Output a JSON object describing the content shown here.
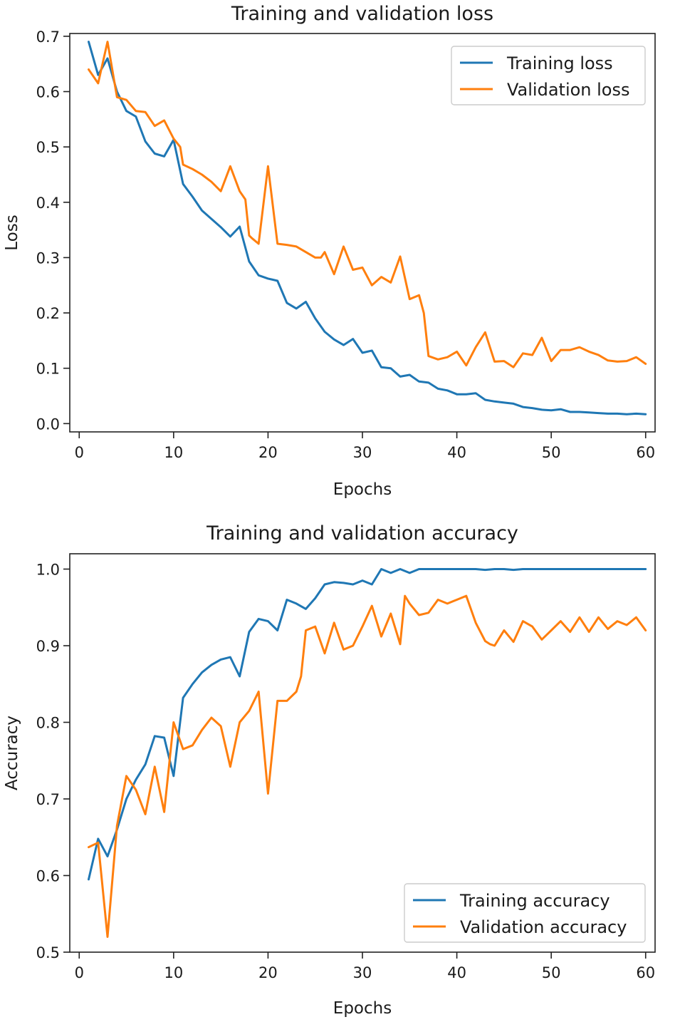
{
  "chart_data": [
    {
      "type": "line",
      "title": "Training and validation loss",
      "xlabel": "Epochs",
      "ylabel": "Loss",
      "xlim": [
        -1,
        61
      ],
      "ylim": [
        -0.015,
        0.705
      ],
      "xticks": [
        0,
        10,
        20,
        30,
        40,
        50,
        60
      ],
      "yticks": [
        0.0,
        0.1,
        0.2,
        0.3,
        0.4,
        0.5,
        0.6,
        0.7
      ],
      "ytick_labels": [
        "0.0",
        "0.1",
        "0.2",
        "0.3",
        "0.4",
        "0.5",
        "0.6",
        "0.7"
      ],
      "legend": "top-right",
      "grid": false,
      "series": [
        {
          "name": "Training loss",
          "color": "#1f77b4",
          "x": [
            1,
            2,
            3,
            4,
            5,
            6,
            7,
            8,
            9,
            10,
            11,
            12,
            13,
            14,
            15,
            16,
            17,
            18,
            19,
            20,
            21,
            22,
            23,
            24,
            25,
            26,
            27,
            28,
            29,
            30,
            31,
            32,
            33,
            34,
            35,
            36,
            37,
            38,
            39,
            40,
            41,
            42,
            43,
            44,
            45,
            46,
            47,
            48,
            49,
            50,
            51,
            52,
            53,
            54,
            55,
            56,
            57,
            58,
            59,
            60
          ],
          "y": [
            0.69,
            0.63,
            0.66,
            0.6,
            0.565,
            0.555,
            0.51,
            0.488,
            0.483,
            0.513,
            0.433,
            0.41,
            0.385,
            0.37,
            0.355,
            0.338,
            0.356,
            0.293,
            0.268,
            0.262,
            0.258,
            0.218,
            0.208,
            0.22,
            0.19,
            0.166,
            0.152,
            0.142,
            0.153,
            0.128,
            0.132,
            0.102,
            0.1,
            0.085,
            0.088,
            0.076,
            0.074,
            0.063,
            0.06,
            0.053,
            0.053,
            0.055,
            0.043,
            0.04,
            0.038,
            0.036,
            0.03,
            0.028,
            0.025,
            0.024,
            0.026,
            0.021,
            0.021,
            0.02,
            0.019,
            0.018,
            0.018,
            0.017,
            0.018,
            0.017
          ]
        },
        {
          "name": "Validation loss",
          "color": "#ff7f0e",
          "x": [
            1,
            2,
            3,
            4,
            5,
            6,
            7,
            8,
            9,
            10,
            10.7,
            11,
            12,
            13,
            14,
            15,
            16,
            17,
            17.6,
            18,
            18.3,
            19,
            20,
            21,
            22,
            23,
            24,
            25,
            25.6,
            26,
            27,
            28,
            29,
            30,
            31,
            32,
            33,
            34,
            35,
            36,
            36.5,
            37,
            38,
            39,
            40,
            41,
            42,
            43,
            44,
            45,
            46,
            47,
            48,
            49,
            50,
            51,
            52,
            53,
            54,
            55,
            56,
            57,
            58,
            59,
            60
          ],
          "y": [
            0.64,
            0.615,
            0.69,
            0.59,
            0.585,
            0.565,
            0.563,
            0.538,
            0.548,
            0.515,
            0.5,
            0.468,
            0.46,
            0.45,
            0.437,
            0.42,
            0.465,
            0.42,
            0.405,
            0.34,
            0.335,
            0.325,
            0.465,
            0.325,
            0.323,
            0.32,
            0.31,
            0.3,
            0.3,
            0.31,
            0.27,
            0.32,
            0.278,
            0.282,
            0.25,
            0.265,
            0.255,
            0.302,
            0.225,
            0.232,
            0.2,
            0.122,
            0.116,
            0.12,
            0.13,
            0.105,
            0.138,
            0.165,
            0.112,
            0.113,
            0.102,
            0.127,
            0.124,
            0.155,
            0.113,
            0.133,
            0.133,
            0.138,
            0.13,
            0.124,
            0.114,
            0.112,
            0.113,
            0.12,
            0.108
          ]
        }
      ]
    },
    {
      "type": "line",
      "title": "Training and validation accuracy",
      "xlabel": "Epochs",
      "ylabel": "Accuracy",
      "xlim": [
        -1,
        61
      ],
      "ylim": [
        0.5,
        1.02
      ],
      "xticks": [
        0,
        10,
        20,
        30,
        40,
        50,
        60
      ],
      "yticks": [
        0.5,
        0.6,
        0.7,
        0.8,
        0.9,
        1.0
      ],
      "ytick_labels": [
        "0.5",
        "0.6",
        "0.7",
        "0.8",
        "0.9",
        "1.0"
      ],
      "legend": "bottom-right",
      "grid": false,
      "series": [
        {
          "name": "Training accuracy",
          "color": "#1f77b4",
          "x": [
            1,
            2,
            3,
            4,
            5,
            6,
            7,
            8,
            9,
            10,
            11,
            12,
            13,
            14,
            15,
            16,
            17,
            18,
            19,
            20,
            21,
            22,
            23,
            24,
            25,
            26,
            27,
            28,
            29,
            30,
            31,
            32,
            33,
            34,
            35,
            36,
            37,
            38,
            39,
            40,
            41,
            42,
            43,
            44,
            45,
            46,
            47,
            48,
            49,
            50,
            51,
            52,
            53,
            54,
            55,
            56,
            57,
            58,
            59,
            60
          ],
          "y": [
            0.595,
            0.648,
            0.625,
            0.66,
            0.7,
            0.725,
            0.745,
            0.782,
            0.78,
            0.73,
            0.832,
            0.85,
            0.865,
            0.875,
            0.882,
            0.885,
            0.86,
            0.918,
            0.935,
            0.932,
            0.92,
            0.96,
            0.955,
            0.948,
            0.962,
            0.98,
            0.983,
            0.982,
            0.98,
            0.985,
            0.98,
            1.0,
            0.995,
            1.0,
            0.995,
            1.0,
            1.0,
            1.0,
            1.0,
            1.0,
            1.0,
            1.0,
            0.999,
            1.0,
            1.0,
            0.999,
            1.0,
            1.0,
            1.0,
            1.0,
            1.0,
            1.0,
            1.0,
            1.0,
            1.0,
            1.0,
            1.0,
            1.0,
            1.0,
            1.0
          ]
        },
        {
          "name": "Validation accuracy",
          "color": "#ff7f0e",
          "x": [
            1,
            2,
            3,
            4,
            5,
            6,
            7,
            8,
            9,
            10,
            11,
            12,
            13,
            14,
            15,
            16,
            17,
            18,
            19,
            20,
            21,
            22,
            23,
            23.5,
            24,
            25,
            26,
            27,
            28,
            29,
            30,
            31,
            32,
            33,
            34,
            34.5,
            35,
            36,
            37,
            38,
            39,
            40,
            41,
            42,
            43,
            43.5,
            44,
            45,
            46,
            47,
            48,
            49,
            50,
            51,
            52,
            53,
            54,
            55,
            56,
            57,
            58,
            59,
            60
          ],
          "y": [
            0.637,
            0.643,
            0.52,
            0.665,
            0.73,
            0.712,
            0.68,
            0.742,
            0.683,
            0.8,
            0.765,
            0.77,
            0.79,
            0.806,
            0.795,
            0.742,
            0.8,
            0.815,
            0.84,
            0.707,
            0.828,
            0.828,
            0.84,
            0.86,
            0.92,
            0.925,
            0.89,
            0.93,
            0.895,
            0.9,
            0.925,
            0.952,
            0.912,
            0.942,
            0.902,
            0.965,
            0.955,
            0.94,
            0.943,
            0.96,
            0.955,
            0.96,
            0.965,
            0.93,
            0.906,
            0.902,
            0.9,
            0.92,
            0.905,
            0.932,
            0.925,
            0.908,
            0.92,
            0.932,
            0.918,
            0.937,
            0.918,
            0.937,
            0.922,
            0.932,
            0.927,
            0.937,
            0.92
          ]
        }
      ]
    }
  ]
}
